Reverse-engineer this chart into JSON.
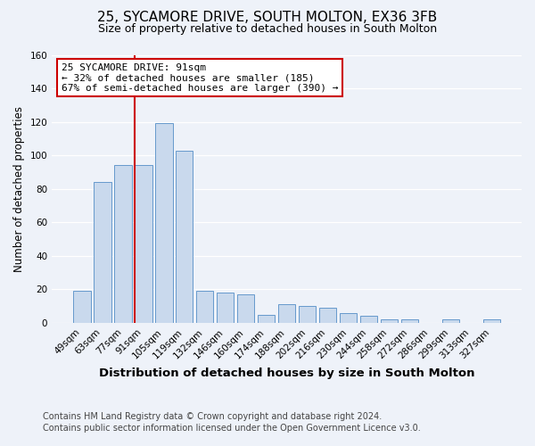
{
  "title": "25, SYCAMORE DRIVE, SOUTH MOLTON, EX36 3FB",
  "subtitle": "Size of property relative to detached houses in South Molton",
  "xlabel": "Distribution of detached houses by size in South Molton",
  "ylabel": "Number of detached properties",
  "bin_labels": [
    "49sqm",
    "63sqm",
    "77sqm",
    "91sqm",
    "105sqm",
    "119sqm",
    "132sqm",
    "146sqm",
    "160sqm",
    "174sqm",
    "188sqm",
    "202sqm",
    "216sqm",
    "230sqm",
    "244sqm",
    "258sqm",
    "272sqm",
    "286sqm",
    "299sqm",
    "313sqm",
    "327sqm"
  ],
  "bar_values": [
    19,
    84,
    94,
    94,
    119,
    103,
    19,
    18,
    17,
    5,
    11,
    10,
    9,
    6,
    4,
    2,
    2,
    0,
    2,
    0,
    2
  ],
  "bar_color": "#c9d9ed",
  "bar_edge_color": "#6699cc",
  "vline_color": "#cc0000",
  "ylim": [
    0,
    160
  ],
  "yticks": [
    0,
    20,
    40,
    60,
    80,
    100,
    120,
    140,
    160
  ],
  "annotation_title": "25 SYCAMORE DRIVE: 91sqm",
  "annotation_line1": "← 32% of detached houses are smaller (185)",
  "annotation_line2": "67% of semi-detached houses are larger (390) →",
  "annotation_box_color": "#ffffff",
  "annotation_box_edge": "#cc0000",
  "footer_line1": "Contains HM Land Registry data © Crown copyright and database right 2024.",
  "footer_line2": "Contains public sector information licensed under the Open Government Licence v3.0.",
  "background_color": "#eef2f9",
  "grid_color": "#ffffff",
  "title_fontsize": 11,
  "subtitle_fontsize": 9,
  "xlabel_fontsize": 9.5,
  "ylabel_fontsize": 8.5,
  "tick_fontsize": 7.5,
  "footer_fontsize": 7,
  "ann_fontsize": 8
}
